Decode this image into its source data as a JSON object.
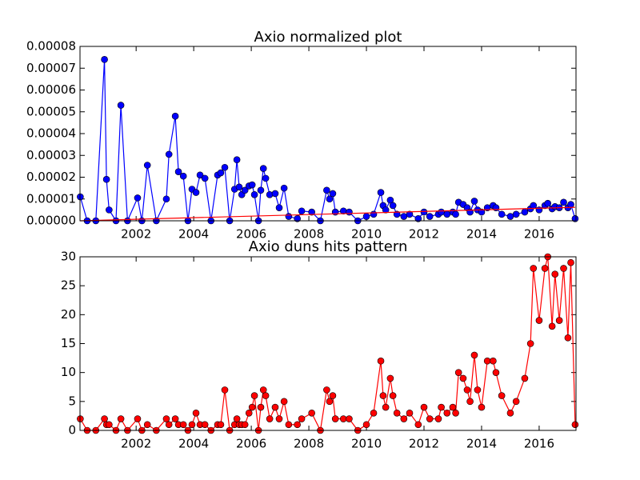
{
  "chart_data": [
    {
      "type": "line",
      "title": "Axio normalized plot",
      "xlim": [
        2000.05,
        2017.28
      ],
      "xticks": [
        2002,
        2004,
        2006,
        2008,
        2010,
        2012,
        2014,
        2016
      ],
      "ylim": [
        0,
        8e-05
      ],
      "yticks": [
        {
          "value": 0,
          "label": "0.00000"
        },
        {
          "value": 1e-05,
          "label": "0.00001"
        },
        {
          "value": 2e-05,
          "label": "0.00002"
        },
        {
          "value": 3e-05,
          "label": "0.00003"
        },
        {
          "value": 4e-05,
          "label": "0.00004"
        },
        {
          "value": 5e-05,
          "label": "0.00005"
        },
        {
          "value": 6e-05,
          "label": "0.00006"
        },
        {
          "value": 7e-05,
          "label": "0.00007"
        },
        {
          "value": 8e-05,
          "label": "0.00008"
        }
      ],
      "series": [
        {
          "color": "#0000ff",
          "marker": "o",
          "x": [
            2000.06,
            2000.3,
            2000.6,
            2000.9,
            2000.97,
            2001.06,
            2001.3,
            2001.47,
            2001.7,
            2002.05,
            2002.2,
            2002.39,
            2002.7,
            2003.05,
            2003.14,
            2003.36,
            2003.47,
            2003.64,
            2003.8,
            2003.94,
            2004.08,
            2004.22,
            2004.39,
            2004.6,
            2004.83,
            2004.94,
            2005.08,
            2005.25,
            2005.42,
            2005.5,
            2005.58,
            2005.67,
            2005.78,
            2005.92,
            2006.03,
            2006.11,
            2006.25,
            2006.33,
            2006.42,
            2006.5,
            2006.64,
            2006.83,
            2006.97,
            2007.14,
            2007.3,
            2007.6,
            2007.75,
            2008.1,
            2008.4,
            2008.62,
            2008.72,
            2008.83,
            2008.92,
            2009.2,
            2009.4,
            2009.7,
            2010.0,
            2010.25,
            2010.5,
            2010.58,
            2010.67,
            2010.83,
            2010.92,
            2011.06,
            2011.3,
            2011.5,
            2011.8,
            2012.0,
            2012.2,
            2012.5,
            2012.6,
            2012.8,
            2013.0,
            2013.1,
            2013.2,
            2013.36,
            2013.5,
            2013.6,
            2013.75,
            2013.86,
            2014.0,
            2014.2,
            2014.4,
            2014.5,
            2014.7,
            2015.0,
            2015.2,
            2015.5,
            2015.7,
            2015.8,
            2016.0,
            2016.2,
            2016.3,
            2016.45,
            2016.55,
            2016.7,
            2016.85,
            2017.0,
            2017.1,
            2017.25
          ],
          "values": [
            1.1e-05,
            0,
            0,
            7.4e-05,
            1.9e-05,
            5e-06,
            0,
            5.3e-05,
            0,
            1.05e-05,
            0,
            2.55e-05,
            0,
            1e-05,
            3.05e-05,
            4.8e-05,
            2.25e-05,
            2.05e-05,
            0,
            1.45e-05,
            1.3e-05,
            2.1e-05,
            1.95e-05,
            0,
            2.1e-05,
            2.2e-05,
            2.45e-05,
            0,
            1.45e-05,
            2.8e-05,
            1.55e-05,
            1.2e-05,
            1.4e-05,
            1.6e-05,
            1.65e-05,
            1.2e-05,
            0,
            1.4e-05,
            2.4e-05,
            1.95e-05,
            1.2e-05,
            1.25e-05,
            6e-06,
            1.5e-05,
            2e-06,
            1e-06,
            4.5e-06,
            4e-06,
            0,
            1.4e-05,
            1e-05,
            1.25e-05,
            4e-06,
            4.5e-06,
            4e-06,
            0,
            2e-06,
            3e-06,
            1.3e-05,
            7e-06,
            5e-06,
            9.5e-06,
            7e-06,
            3e-06,
            2e-06,
            3e-06,
            1e-06,
            4e-06,
            2e-06,
            3e-06,
            4e-06,
            3e-06,
            4e-06,
            3e-06,
            8.5e-06,
            7.5e-06,
            6e-06,
            4e-06,
            9e-06,
            5e-06,
            4e-06,
            6e-06,
            7e-06,
            6e-06,
            3e-06,
            2e-06,
            3e-06,
            4e-06,
            5.5e-06,
            7e-06,
            5e-06,
            7e-06,
            8e-06,
            5.5e-06,
            6.5e-06,
            6e-06,
            8.5e-06,
            6e-06,
            7.5e-06,
            1e-06
          ]
        },
        {
          "color": "#ff0000",
          "x": [
            2000.06,
            2017.25
          ],
          "values": [
            0,
            6.2e-06
          ]
        }
      ]
    },
    {
      "type": "line",
      "title": "Axio duns hits pattern",
      "xlim": [
        2000.05,
        2017.28
      ],
      "xticks": [
        2002,
        2004,
        2006,
        2008,
        2010,
        2012,
        2014,
        2016
      ],
      "ylim": [
        0,
        30
      ],
      "yticks": [
        0,
        5,
        10,
        15,
        20,
        25,
        30
      ],
      "series": [
        {
          "color": "#ff0000",
          "marker": "o",
          "x": [
            2000.06,
            2000.3,
            2000.6,
            2000.9,
            2000.97,
            2001.06,
            2001.3,
            2001.47,
            2001.7,
            2002.05,
            2002.2,
            2002.39,
            2002.7,
            2003.05,
            2003.14,
            2003.36,
            2003.47,
            2003.64,
            2003.8,
            2003.94,
            2004.08,
            2004.22,
            2004.39,
            2004.6,
            2004.83,
            2004.94,
            2005.08,
            2005.25,
            2005.42,
            2005.5,
            2005.58,
            2005.67,
            2005.78,
            2005.92,
            2006.03,
            2006.11,
            2006.25,
            2006.33,
            2006.42,
            2006.5,
            2006.64,
            2006.83,
            2006.97,
            2007.14,
            2007.3,
            2007.6,
            2007.75,
            2008.1,
            2008.4,
            2008.62,
            2008.72,
            2008.83,
            2008.92,
            2009.2,
            2009.4,
            2009.7,
            2010.0,
            2010.25,
            2010.5,
            2010.58,
            2010.67,
            2010.83,
            2010.92,
            2011.06,
            2011.3,
            2011.5,
            2011.8,
            2012.0,
            2012.2,
            2012.5,
            2012.6,
            2012.8,
            2013.0,
            2013.1,
            2013.2,
            2013.36,
            2013.5,
            2013.6,
            2013.75,
            2013.86,
            2014.0,
            2014.2,
            2014.4,
            2014.5,
            2014.7,
            2015.0,
            2015.2,
            2015.5,
            2015.7,
            2015.8,
            2016.0,
            2016.2,
            2016.3,
            2016.45,
            2016.55,
            2016.7,
            2016.85,
            2017.0,
            2017.1,
            2017.25
          ],
          "values": [
            2,
            0,
            0,
            2,
            1,
            1,
            0,
            2,
            0,
            2,
            0,
            1,
            0,
            2,
            1,
            2,
            1,
            1,
            0,
            1,
            3,
            1,
            1,
            0,
            1,
            1,
            7,
            0,
            1,
            2,
            1,
            1,
            1,
            3,
            4,
            6,
            0,
            4,
            7,
            6,
            2,
            4,
            2,
            5,
            1,
            1,
            2,
            3,
            0,
            7,
            5,
            6,
            2,
            2,
            2,
            0,
            1,
            3,
            12,
            6,
            4,
            9,
            6,
            3,
            2,
            3,
            1,
            4,
            2,
            2,
            4,
            3,
            4,
            3,
            10,
            9,
            7,
            5,
            13,
            7,
            4,
            12,
            12,
            10,
            6,
            3,
            5,
            9,
            15,
            28,
            19,
            28,
            30,
            18,
            27,
            19,
            28,
            16,
            29,
            1
          ]
        }
      ]
    }
  ]
}
